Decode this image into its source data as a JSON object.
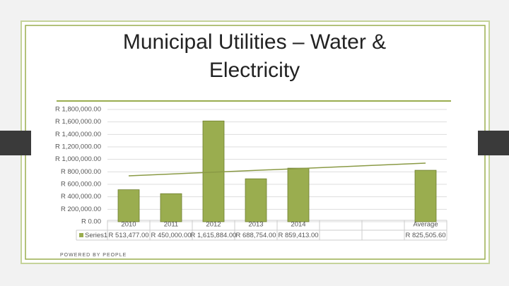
{
  "chart_data": {
    "type": "bar",
    "title": "Municipal Utilities – Water & Electricity",
    "footer": "POWERED BY PEOPLE",
    "categories": [
      "2010",
      "2011",
      "2012",
      "2013",
      "2014",
      null,
      null,
      "Average"
    ],
    "series": [
      {
        "name": "Series1",
        "color": "#9aad4f",
        "values": [
          513477,
          450000,
          1615884,
          688754,
          859413,
          null,
          null,
          825505.6
        ],
        "value_labels": [
          "R 513,477.00",
          "R 450,000.00",
          "R 1,615,884.00",
          "R 688,754.00",
          "R 859,413.00",
          null,
          null,
          "R 825,505.60"
        ]
      }
    ],
    "trendline": [
      736000,
      940000
    ],
    "ylim": [
      0,
      1800000
    ],
    "yticks": [
      {
        "value": 0,
        "label": "R 0.00"
      },
      {
        "value": 200000,
        "label": "R 200,000.00"
      },
      {
        "value": 400000,
        "label": "R 400,000.00"
      },
      {
        "value": 600000,
        "label": "R 600,000.00"
      },
      {
        "value": 800000,
        "label": "R 800,000.00"
      },
      {
        "value": 1000000,
        "label": "R 1,000,000.00"
      },
      {
        "value": 1200000,
        "label": "R 1,200,000.00"
      },
      {
        "value": 1400000,
        "label": "R 1,400,000.00"
      },
      {
        "value": 1600000,
        "label": "R 1,600,000.00"
      },
      {
        "value": 1800000,
        "label": "R 1,800,000.00"
      }
    ],
    "grid": true
  }
}
